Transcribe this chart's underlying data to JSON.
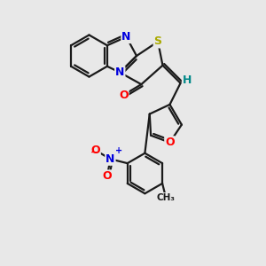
{
  "bg_color": "#e8e8e8",
  "bond_color": "#1a1a1a",
  "bond_width": 1.6,
  "atom_colors": {
    "N": "#0000dd",
    "S": "#aaaa00",
    "O": "#ff0000",
    "H": "#008888",
    "C": "#1a1a1a",
    "plus": "#0000dd",
    "minus": "#ff0000"
  },
  "figsize": [
    3.0,
    3.0
  ],
  "dpi": 100
}
